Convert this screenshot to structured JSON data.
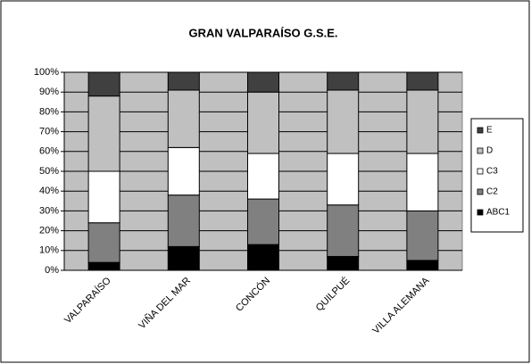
{
  "chart_data": {
    "type": "bar",
    "stacked": true,
    "title": "GRAN VALPARAÍSO G.S.E.",
    "categories": [
      "VALPARAÍSO",
      "VIÑA DEL MAR",
      "CONCÓN",
      "QUILPUÉ",
      "VILLA ALEMANA"
    ],
    "series": [
      {
        "name": "ABC1",
        "color": "#000000",
        "values": [
          4,
          12,
          13,
          7,
          5
        ]
      },
      {
        "name": "C2",
        "color": "#808080",
        "values": [
          20,
          26,
          23,
          26,
          25
        ]
      },
      {
        "name": "C3",
        "color": "#ffffff",
        "values": [
          26,
          24,
          23,
          26,
          29
        ]
      },
      {
        "name": "D",
        "color": "#c0c0c0",
        "values": [
          38,
          29,
          31,
          32,
          32
        ]
      },
      {
        "name": "E",
        "color": "#404040",
        "values": [
          12,
          9,
          10,
          9,
          9
        ]
      }
    ],
    "ylim": [
      0,
      100
    ],
    "yticks": [
      {
        "value": 0,
        "label": "0%"
      },
      {
        "value": 10,
        "label": "10%"
      },
      {
        "value": 20,
        "label": "20%"
      },
      {
        "value": 30,
        "label": "30%"
      },
      {
        "value": 40,
        "label": "40%"
      },
      {
        "value": 50,
        "label": "50%"
      },
      {
        "value": 60,
        "label": "60%"
      },
      {
        "value": 70,
        "label": "70%"
      },
      {
        "value": 80,
        "label": "80%"
      },
      {
        "value": 90,
        "label": "90%"
      },
      {
        "value": 100,
        "label": "100%"
      }
    ],
    "grid": true,
    "legend": "right"
  }
}
